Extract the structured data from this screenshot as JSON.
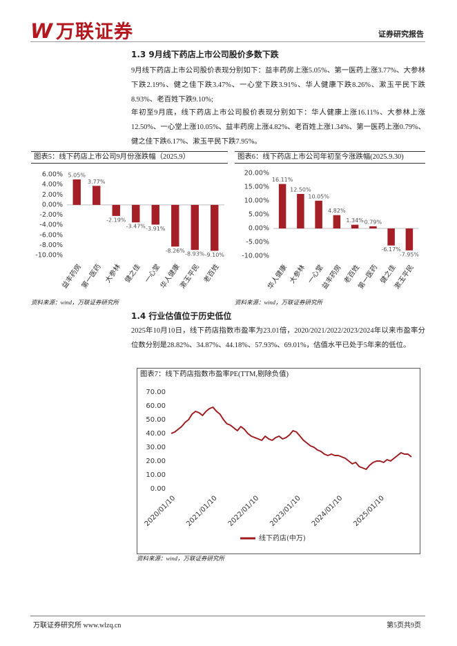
{
  "header": {
    "logo_mark": "W",
    "logo": "万联证券",
    "report_type": "证券研究报告"
  },
  "sections": [
    {
      "title": "1.3  9月线下药店上市公司股价多数下跌",
      "paragraphs": [
        "9月线下药店上市公司股价表现分别如下：益丰药房上涨5.05%、第一医药上涨3.77%、大参林下跌2.19%、健之佳下跌3.47%、一心堂下跌3.91%、华人健康下跌8.26%、漱玉平民下跌8.93%、老百姓下跌9.10%;",
        "年初至9月底，线下药店上市公司股价表现分别如下：华人健康上涨16.11%、大参林上涨12.50%、一心堂上涨10.05%、益丰药房上涨4.82%、老百姓上涨1.34%、第一医药上涨0.79%、健之佳下跌6.17%、漱玉平民下跌7.95%。"
      ]
    },
    {
      "title": "1.4  行业估值位于历史低位",
      "paragraphs": [
        "2025年10月10日，线下药店指数市盈率为23.01倍，2020/2021/2022/2023/2024年以来市盈率分位数分别是28.82%、34.87%、44.18%、57.93%、69.01%，估值水平已处于5年来的低位。"
      ]
    }
  ],
  "chart_data": [
    {
      "type": "bar",
      "title": "图表5：线下药店上市公司9月份涨跌幅（2025.9）",
      "categories": [
        "益丰药房",
        "第一医药",
        "大参林",
        "健之佳",
        "一心堂",
        "华人健康",
        "漱玉平民",
        "老百姓"
      ],
      "values": [
        5.05,
        3.77,
        -2.19,
        -3.47,
        -3.91,
        -8.26,
        -8.93,
        -9.1
      ],
      "value_labels": [
        "5.05%",
        "3.77%",
        "-2.19%",
        "-3.47%",
        "-3.91%",
        "-8.26%",
        "-8.93%",
        "-9.10%"
      ],
      "color": "#a51f27",
      "ylim": [
        -10,
        6
      ],
      "yticks": [
        {
          "value": 6,
          "label": "6.00%"
        },
        {
          "value": 4,
          "label": "4.00%"
        },
        {
          "value": 2,
          "label": "2.00%"
        },
        {
          "value": 0,
          "label": "0.00%"
        },
        {
          "value": -2,
          "label": "-2.00%"
        },
        {
          "value": -4,
          "label": "-4.00%"
        },
        {
          "value": -6,
          "label": "-6.00%"
        },
        {
          "value": -8,
          "label": "-8.00%"
        },
        {
          "value": -10,
          "label": "-10.00%"
        }
      ],
      "source": "资料来源：wind，万联证券研究所"
    },
    {
      "type": "bar",
      "title": "图表6：线下药店上市公司年初至今涨跌幅(2025.9.30)",
      "categories": [
        "华人健康",
        "大参林",
        "一心堂",
        "益丰药房",
        "老百姓",
        "第一医药",
        "健之佳",
        "漱玉平民"
      ],
      "values": [
        16.11,
        12.5,
        10.05,
        4.82,
        1.34,
        0.79,
        -6.17,
        -7.95
      ],
      "value_labels": [
        "16.11%",
        "12.50%",
        "10.05%",
        "4.82%",
        "1.34%",
        "0.79%",
        "-6.17%",
        "-7.95%"
      ],
      "color": "#a51f27",
      "ylim": [
        -10,
        20
      ],
      "yticks": [
        {
          "value": 20,
          "label": "20.00%"
        },
        {
          "value": 15,
          "label": "15.00%"
        },
        {
          "value": 10,
          "label": "10.00%"
        },
        {
          "value": 5,
          "label": "5.00%"
        },
        {
          "value": 0,
          "label": "0.00%"
        },
        {
          "value": -5,
          "label": "-5.00%"
        },
        {
          "value": -10,
          "label": "-10.00%"
        }
      ],
      "source": "资料来源：wind，万联证券研究所"
    },
    {
      "type": "line",
      "title": "图表7：线下药店指数市盈率PE(TTM,剔除负值)",
      "x": [
        "2020/01/10",
        "2020/02/10",
        "2020/03/10",
        "2020/04/10",
        "2020/05/10",
        "2020/06/10",
        "2020/07/10",
        "2020/08/10",
        "2020/09/10",
        "2020/10/10",
        "2020/11/10",
        "2020/12/10",
        "2021/01/10",
        "2021/02/10",
        "2021/03/10",
        "2021/04/10",
        "2021/05/10",
        "2021/06/10",
        "2021/07/10",
        "2021/08/10",
        "2021/09/10",
        "2021/10/10",
        "2021/11/10",
        "2021/12/10",
        "2022/01/10",
        "2022/02/10",
        "2022/03/10",
        "2022/04/10",
        "2022/05/10",
        "2022/06/10",
        "2022/07/10",
        "2022/08/10",
        "2022/09/10",
        "2022/10/10",
        "2022/11/10",
        "2022/12/10",
        "2023/01/10",
        "2023/02/10",
        "2023/03/10",
        "2023/04/10",
        "2023/05/10",
        "2023/06/10",
        "2023/07/10",
        "2023/08/10",
        "2023/09/10",
        "2023/10/10",
        "2023/11/10",
        "2023/12/10",
        "2024/01/10",
        "2024/02/10",
        "2024/03/10",
        "2024/04/10",
        "2024/05/10",
        "2024/06/10",
        "2024/07/10",
        "2024/08/10",
        "2024/09/10",
        "2024/10/10",
        "2024/11/10",
        "2024/12/10",
        "2025/01/10",
        "2025/02/10",
        "2025/03/10",
        "2025/04/10",
        "2025/05/10",
        "2025/06/10",
        "2025/07/10",
        "2025/08/10",
        "2025/09/10",
        "2025/10/10"
      ],
      "series": [
        {
          "name": "线下药店(中万)",
          "color": "#9e1b20",
          "values": [
            40,
            41,
            43,
            45,
            48,
            50,
            54,
            56,
            55,
            53,
            56,
            58,
            59,
            56,
            54,
            50,
            47,
            46,
            44,
            42,
            45,
            43,
            40,
            38,
            37,
            36,
            35,
            38,
            36,
            35,
            37,
            38,
            36,
            37,
            39,
            42,
            41,
            38,
            35,
            33,
            31,
            30,
            28,
            27,
            25,
            24,
            25,
            24,
            24,
            23,
            22,
            20,
            18,
            19,
            16,
            15,
            14,
            17,
            19,
            20,
            20,
            19,
            21,
            20,
            22,
            24,
            26,
            25,
            25,
            23.01
          ]
        }
      ],
      "xlim": [
        "2020/01/10",
        "2025/10/10"
      ],
      "xticks": [
        "2020/01/10",
        "2021/01/10",
        "2022/01/10",
        "2023/01/10",
        "2024/01/10",
        "2025/01/10"
      ],
      "ylim": [
        0,
        70
      ],
      "yticks": [
        {
          "value": 70,
          "label": "70.00"
        },
        {
          "value": 60,
          "label": "60.00"
        },
        {
          "value": 50,
          "label": "50.00"
        },
        {
          "value": 40,
          "label": "40.00"
        },
        {
          "value": 30,
          "label": "30.00"
        },
        {
          "value": 20,
          "label": "20.00"
        },
        {
          "value": 10,
          "label": "10.00"
        },
        {
          "value": 0,
          "label": "0.00"
        }
      ],
      "source": "资料来源：wind，万联证券研究所"
    }
  ],
  "footer": {
    "left": "万联证券研究所  www.wlzq.cn",
    "right": "第5页共9页"
  }
}
